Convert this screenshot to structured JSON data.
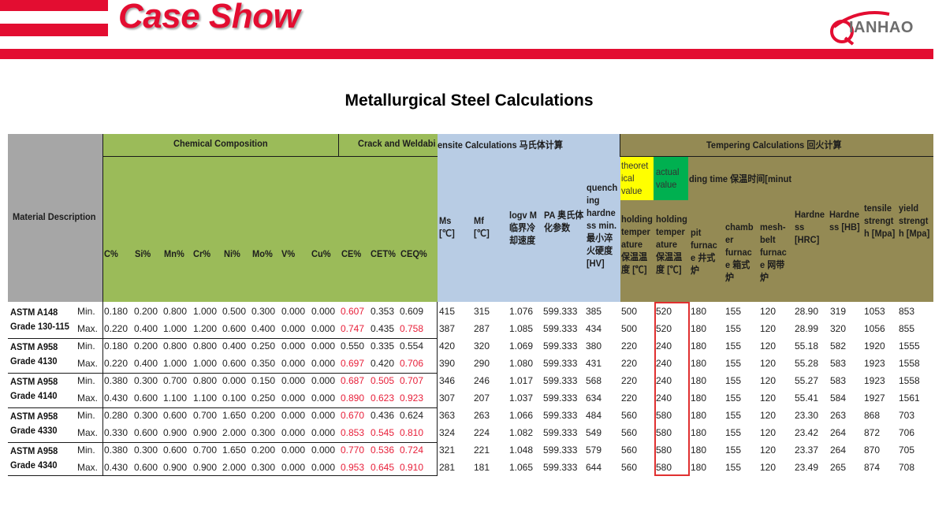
{
  "header": {
    "title": "Case Show",
    "logo_text": "IANHAO",
    "logo_letter": "Q",
    "brand_color": "#e30d31"
  },
  "page_title": "Metallurgical Steel Calculations",
  "table": {
    "group_headers": {
      "material": "Material Description",
      "chemical": "Chemical Composition",
      "crack": "Crack and Weldabi",
      "martensite": "ensite Calculations 马氏体计算",
      "tempering": "Tempering Calculations 回火计算",
      "theoretical": "theoret ical value",
      "actual": "actual value",
      "holding_time": "ding time 保温时间[minut"
    },
    "columns": {
      "c": "C%",
      "si": "Si%",
      "mn": "Mn%",
      "cr": "Cr%",
      "ni": "Ni%",
      "mo": "Mo%",
      "v": "V%",
      "cu": "Cu%",
      "ce": "CE%",
      "cet": "CET%",
      "ceq": "CEQ%",
      "ms": "Ms [℃]",
      "mf": "Mf [℃]",
      "logv": "logv M 临界冷却速度",
      "pa": "PA 奥氏体化参数",
      "qh": "quench ing hardne ss min. 最小淬火硬度 [HV]",
      "ht_theo": "holding temper ature 保温温度 [℃]",
      "ht_act": "holding temper ature 保温温度 [℃]",
      "pit": "pit furnac e 井式炉",
      "chamber": "chamb er furnac e 箱式炉",
      "mesh": "mesh- belt furnac e 网带炉",
      "hrc": "Hardne ss [HRC]",
      "hb": "Hardne ss [HB]",
      "tensile": "tensile strengt h [Mpa]",
      "yield": "yield strengt h [Mpa]"
    },
    "materials": [
      {
        "line1": "ASTM A148",
        "line2": "Grade 130-115"
      },
      {
        "line1": "ASTM A958",
        "line2": "Grade 4130"
      },
      {
        "line1": "ASTM A958",
        "line2": "Grade 4140"
      },
      {
        "line1": "ASTM A958",
        "line2": "Grade 4330"
      },
      {
        "line1": "ASTM A958",
        "line2": "Grade 4340"
      }
    ],
    "rows": [
      {
        "mm": "Min.",
        "c": "0.180",
        "si": "0.200",
        "mn": "0.800",
        "cr": "1.000",
        "ni": "0.500",
        "mo": "0.300",
        "v": "0.000",
        "cu": "0.000",
        "ce": "0.607",
        "cet": "0.353",
        "ceq": "0.609",
        "ms": "415",
        "mf": "315",
        "logv": "1.076",
        "pa": "599.333",
        "qh": "385",
        "theo": "500",
        "act": "520",
        "pit": "180",
        "chamber": "155",
        "mesh": "120",
        "hrc": "28.90",
        "hb": "319",
        "ts": "1053",
        "ys": "853"
      },
      {
        "mm": "Max.",
        "c": "0.220",
        "si": "0.400",
        "mn": "1.000",
        "cr": "1.200",
        "ni": "0.600",
        "mo": "0.400",
        "v": "0.000",
        "cu": "0.000",
        "ce": "0.747",
        "cet": "0.435",
        "ceq": "0.758",
        "ms": "387",
        "mf": "287",
        "logv": "1.085",
        "pa": "599.333",
        "qh": "434",
        "theo": "500",
        "act": "520",
        "pit": "180",
        "chamber": "155",
        "mesh": "120",
        "hrc": "28.99",
        "hb": "320",
        "ts": "1056",
        "ys": "855"
      },
      {
        "mm": "Min.",
        "c": "0.180",
        "si": "0.200",
        "mn": "0.800",
        "cr": "0.800",
        "ni": "0.400",
        "mo": "0.250",
        "v": "0.000",
        "cu": "0.000",
        "ce": "0.550",
        "cet": "0.335",
        "ceq": "0.554",
        "ms": "420",
        "mf": "320",
        "logv": "1.069",
        "pa": "599.333",
        "qh": "380",
        "theo": "220",
        "act": "240",
        "pit": "180",
        "chamber": "155",
        "mesh": "120",
        "hrc": "55.18",
        "hb": "582",
        "ts": "1920",
        "ys": "1555"
      },
      {
        "mm": "Max.",
        "c": "0.220",
        "si": "0.400",
        "mn": "1.000",
        "cr": "1.000",
        "ni": "0.600",
        "mo": "0.350",
        "v": "0.000",
        "cu": "0.000",
        "ce": "0.697",
        "cet": "0.420",
        "ceq": "0.706",
        "ms": "390",
        "mf": "290",
        "logv": "1.080",
        "pa": "599.333",
        "qh": "431",
        "theo": "220",
        "act": "240",
        "pit": "180",
        "chamber": "155",
        "mesh": "120",
        "hrc": "55.28",
        "hb": "583",
        "ts": "1923",
        "ys": "1558"
      },
      {
        "mm": "Min.",
        "c": "0.380",
        "si": "0.300",
        "mn": "0.700",
        "cr": "0.800",
        "ni": "0.000",
        "mo": "0.150",
        "v": "0.000",
        "cu": "0.000",
        "ce": "0.687",
        "cet": "0.505",
        "ceq": "0.707",
        "ms": "346",
        "mf": "246",
        "logv": "1.017",
        "pa": "599.333",
        "qh": "568",
        "theo": "220",
        "act": "240",
        "pit": "180",
        "chamber": "155",
        "mesh": "120",
        "hrc": "55.27",
        "hb": "583",
        "ts": "1923",
        "ys": "1558"
      },
      {
        "mm": "Max.",
        "c": "0.430",
        "si": "0.600",
        "mn": "1.100",
        "cr": "1.100",
        "ni": "0.100",
        "mo": "0.250",
        "v": "0.000",
        "cu": "0.000",
        "ce": "0.890",
        "cet": "0.623",
        "ceq": "0.923",
        "ms": "307",
        "mf": "207",
        "logv": "1.037",
        "pa": "599.333",
        "qh": "634",
        "theo": "220",
        "act": "240",
        "pit": "180",
        "chamber": "155",
        "mesh": "120",
        "hrc": "55.41",
        "hb": "584",
        "ts": "1927",
        "ys": "1561"
      },
      {
        "mm": "Min.",
        "c": "0.280",
        "si": "0.300",
        "mn": "0.600",
        "cr": "0.700",
        "ni": "1.650",
        "mo": "0.200",
        "v": "0.000",
        "cu": "0.000",
        "ce": "0.670",
        "cet": "0.436",
        "ceq": "0.624",
        "ms": "363",
        "mf": "263",
        "logv": "1.066",
        "pa": "599.333",
        "qh": "484",
        "theo": "560",
        "act": "580",
        "pit": "180",
        "chamber": "155",
        "mesh": "120",
        "hrc": "23.30",
        "hb": "263",
        "ts": "868",
        "ys": "703"
      },
      {
        "mm": "Max.",
        "c": "0.330",
        "si": "0.600",
        "mn": "0.900",
        "cr": "0.900",
        "ni": "2.000",
        "mo": "0.300",
        "v": "0.000",
        "cu": "0.000",
        "ce": "0.853",
        "cet": "0.545",
        "ceq": "0.810",
        "ms": "324",
        "mf": "224",
        "logv": "1.082",
        "pa": "599.333",
        "qh": "549",
        "theo": "560",
        "act": "580",
        "pit": "180",
        "chamber": "155",
        "mesh": "120",
        "hrc": "23.42",
        "hb": "264",
        "ts": "872",
        "ys": "706"
      },
      {
        "mm": "Min.",
        "c": "0.380",
        "si": "0.300",
        "mn": "0.600",
        "cr": "0.700",
        "ni": "1.650",
        "mo": "0.200",
        "v": "0.000",
        "cu": "0.000",
        "ce": "0.770",
        "cet": "0.536",
        "ceq": "0.724",
        "ms": "321",
        "mf": "221",
        "logv": "1.048",
        "pa": "599.333",
        "qh": "579",
        "theo": "560",
        "act": "580",
        "pit": "180",
        "chamber": "155",
        "mesh": "120",
        "hrc": "23.37",
        "hb": "264",
        "ts": "870",
        "ys": "705"
      },
      {
        "mm": "Max.",
        "c": "0.430",
        "si": "0.600",
        "mn": "0.900",
        "cr": "0.900",
        "ni": "2.000",
        "mo": "0.300",
        "v": "0.000",
        "cu": "0.000",
        "ce": "0.953",
        "cet": "0.645",
        "ceq": "0.910",
        "ms": "281",
        "mf": "181",
        "logv": "1.065",
        "pa": "599.333",
        "qh": "644",
        "theo": "560",
        "act": "580",
        "pit": "180",
        "chamber": "155",
        "mesh": "120",
        "hrc": "23.49",
        "hb": "265",
        "ts": "874",
        "ys": "708"
      }
    ],
    "red_cells": [
      [
        "ce"
      ],
      [
        "ce",
        "ceq"
      ],
      [],
      [
        "ce",
        "ceq"
      ],
      [
        "ce",
        "cet",
        "ceq"
      ],
      [
        "ce",
        "cet",
        "ceq"
      ],
      [
        "ce"
      ],
      [
        "ce",
        "cet",
        "ceq"
      ],
      [
        "ce",
        "cet",
        "ceq"
      ],
      [
        "ce",
        "cet",
        "ceq"
      ]
    ],
    "colors": {
      "gray": "#a6a6a6",
      "green": "#9bbb59",
      "blue": "#b8cce4",
      "olive": "#948a54",
      "yellow": "#ffff00",
      "vivid_green": "#00b050",
      "red_text": "#e8203a",
      "highlight_box": "#e03030"
    }
  }
}
